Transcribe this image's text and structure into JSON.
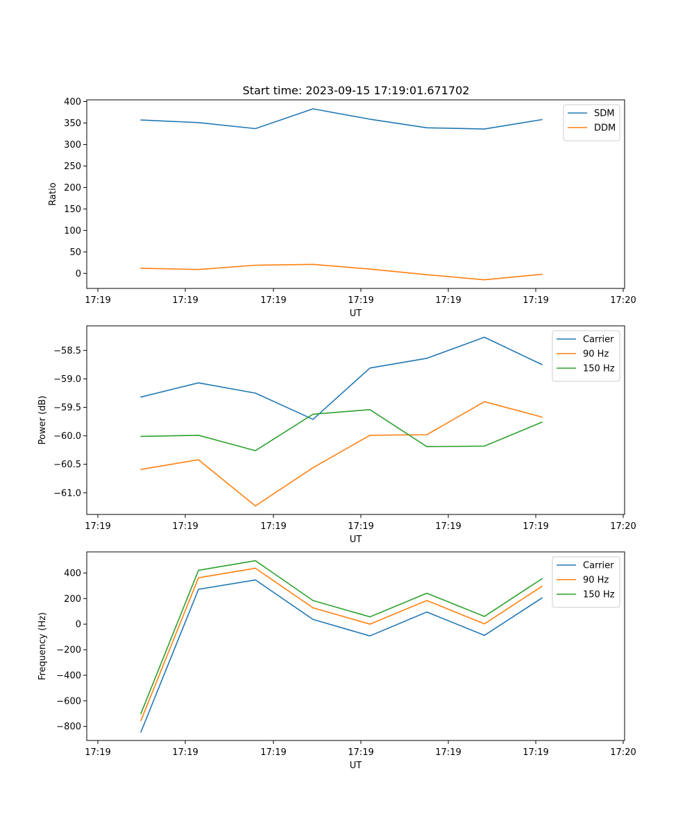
{
  "title": "Start time: 2023-09-15 17:19:01.671702",
  "chart_data": [
    {
      "type": "line",
      "name": "ratio",
      "xlabel": "UT",
      "ylabel": "Ratio",
      "xtick_labels": [
        "17:19",
        "17:19",
        "17:19",
        "17:19",
        "17:19",
        "17:19",
        "17:20"
      ],
      "yticks": [
        0,
        50,
        100,
        150,
        200,
        250,
        300,
        350,
        400
      ],
      "ytick_labels": [
        "0",
        "50",
        "100",
        "150",
        "200",
        "250",
        "300",
        "350",
        "400"
      ],
      "ylim": [
        -35,
        404
      ],
      "legend_position": "top-right",
      "series": [
        {
          "name": "SDM",
          "color": "#1f77b4",
          "values": [
            357,
            351,
            337,
            383,
            359,
            339,
            336,
            358
          ]
        },
        {
          "name": "DDM",
          "color": "#ff7f0e",
          "values": [
            12,
            9,
            19,
            21,
            10,
            -3,
            -15,
            -2
          ]
        }
      ]
    },
    {
      "type": "line",
      "name": "power",
      "xlabel": "UT",
      "ylabel": "Power (dB)",
      "xtick_labels": [
        "17:19",
        "17:19",
        "17:19",
        "17:19",
        "17:19",
        "17:19",
        "17:20"
      ],
      "yticks": [
        -61.0,
        -60.5,
        -60.0,
        -59.5,
        -59.0,
        -58.5
      ],
      "ytick_labels": [
        "−61.0",
        "−60.5",
        "−60.0",
        "−59.5",
        "−59.0",
        "−58.5"
      ],
      "ylim": [
        -61.38,
        -58.07
      ],
      "legend_position": "top-right",
      "series": [
        {
          "name": "Carrier",
          "color": "#1f77b4",
          "values": [
            -59.32,
            -59.07,
            -59.25,
            -59.71,
            -58.81,
            -58.64,
            -58.27,
            -58.75
          ]
        },
        {
          "name": "90 Hz",
          "color": "#ff7f0e",
          "values": [
            -60.59,
            -60.42,
            -61.23,
            -60.56,
            -59.99,
            -59.98,
            -59.4,
            -59.67
          ]
        },
        {
          "name": "150 Hz",
          "color": "#2ca02c",
          "values": [
            -60.01,
            -59.99,
            -60.26,
            -59.62,
            -59.54,
            -60.19,
            -60.18,
            -59.76
          ]
        }
      ]
    },
    {
      "type": "line",
      "name": "frequency",
      "xlabel": "UT",
      "ylabel": "Frequency (Hz)",
      "xtick_labels": [
        "17:19",
        "17:19",
        "17:19",
        "17:19",
        "17:19",
        "17:19",
        "17:20"
      ],
      "yticks": [
        -800,
        -600,
        -400,
        -200,
        0,
        200,
        400
      ],
      "ytick_labels": [
        "−800",
        "−600",
        "−400",
        "−200",
        "0",
        "200",
        "400"
      ],
      "ylim": [
        -910,
        565
      ],
      "legend_position": "top-right",
      "series": [
        {
          "name": "Carrier",
          "color": "#1f77b4",
          "values": [
            -845,
            272,
            346,
            37,
            -92,
            95,
            -88,
            205
          ]
        },
        {
          "name": "90 Hz",
          "color": "#ff7f0e",
          "values": [
            -755,
            363,
            437,
            128,
            0,
            185,
            2,
            296
          ]
        },
        {
          "name": "150 Hz",
          "color": "#2ca02c",
          "values": [
            -700,
            421,
            496,
            185,
            57,
            242,
            60,
            355
          ]
        }
      ]
    }
  ]
}
